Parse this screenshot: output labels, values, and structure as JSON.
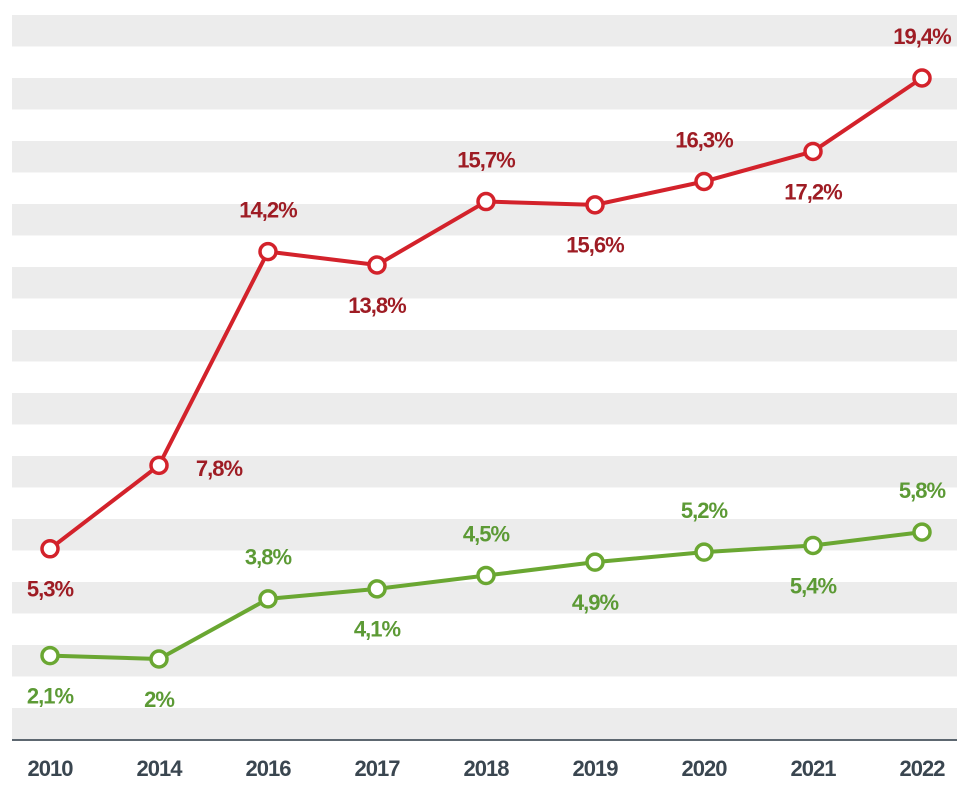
{
  "chart_data": {
    "type": "line",
    "categories": [
      "2010",
      "2014",
      "2016",
      "2017",
      "2018",
      "2019",
      "2020",
      "2021",
      "2022"
    ],
    "series": [
      {
        "color": "#d3222b",
        "label_color": "#9e1c24",
        "values": [
          5.3,
          7.8,
          14.2,
          13.8,
          15.7,
          15.6,
          16.3,
          17.2,
          19.4
        ],
        "value_labels": [
          "5,3%",
          "7,8%",
          "14,2%",
          "13,8%",
          "15,7%",
          "15,6%",
          "16,3%",
          "17,2%",
          "19,4%"
        ]
      },
      {
        "color": "#6aa732",
        "label_color": "#5c9a35",
        "values": [
          2.1,
          2,
          3.8,
          4.1,
          4.5,
          4.9,
          5.2,
          5.4,
          5.8
        ],
        "value_labels": [
          "2,1%",
          "2%",
          "3,8%",
          "4,1%",
          "4,5%",
          "4,9%",
          "5,2%",
          "5,4%",
          "5,8%"
        ]
      }
    ]
  }
}
